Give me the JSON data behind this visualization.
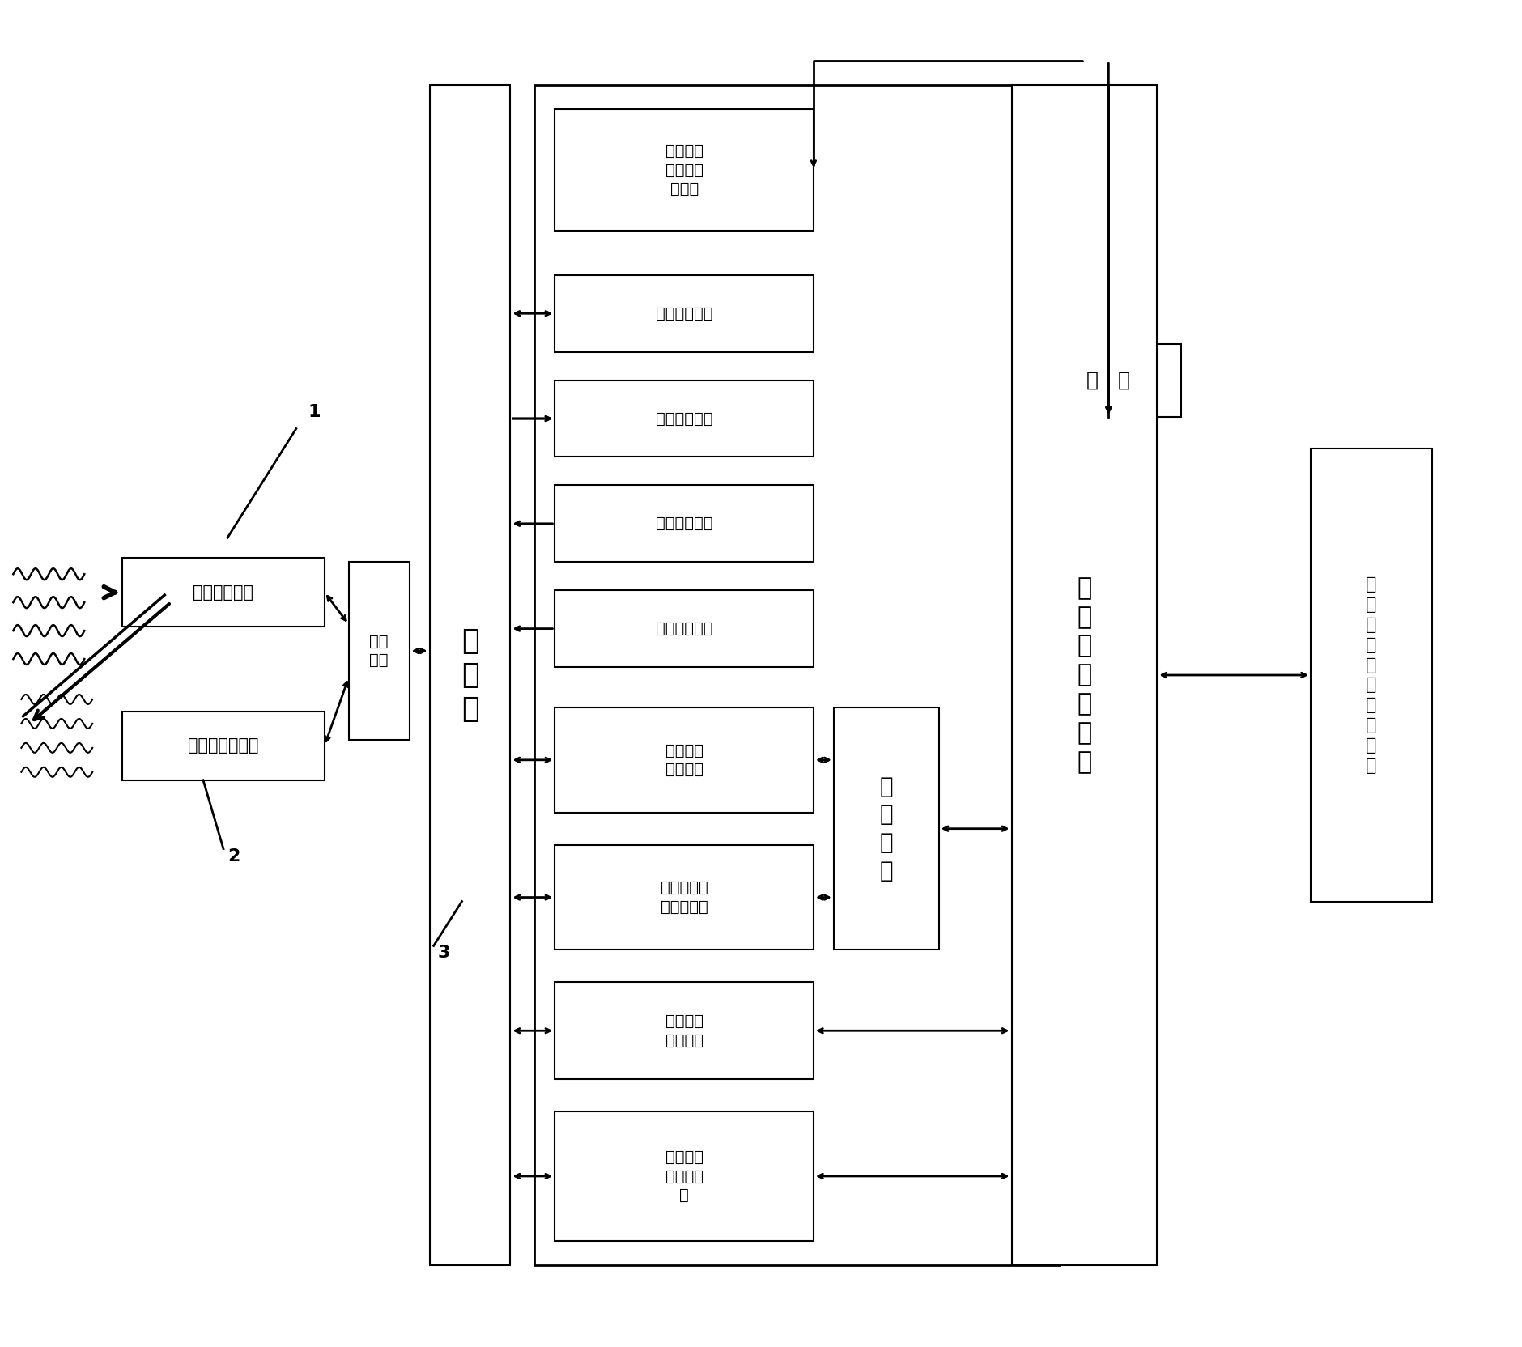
{
  "bg_color": "#ffffff",
  "line_color": "#000000",
  "box_color": "#ffffff",
  "font_family": "SimHei",
  "labels": {
    "ir_detector": "远红外探测器",
    "pressure_detector": "压力敏感探测器",
    "digital_port": "数字\n接口",
    "computer": "计\n算\n机",
    "func_report": "功能＋结\n构影像分\n析报告",
    "data_collect": "数据采集单元",
    "data_save": "数据保存单元",
    "info_convert": "信息转换单元",
    "image_process": "图像处理单元",
    "ir_thermal": "红外热像\n分析单元",
    "pressure_diag": "压敏触诊影\n像分析单元",
    "ir_device": "红外设备\n控制单元",
    "pressure_ctrl": "压敏探测\n器控制单\n元",
    "综合分析": "综\n合\n分\n析",
    "数据": "数   据",
    "软件主操作界面": "软\n件\n主\n操\n作\n界\n面",
    "影像及操作控制显示器": "影\n像\n及\n操\n作\n控\n制\n显\n示\n器",
    "label1": "1",
    "label2": "2",
    "label3": "3"
  }
}
